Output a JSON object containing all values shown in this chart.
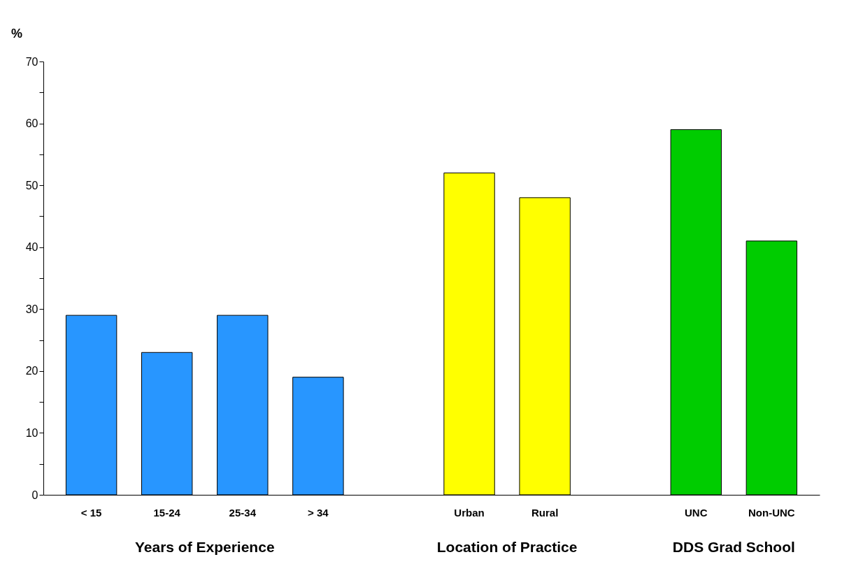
{
  "chart_data": {
    "type": "bar",
    "ylabel": "%",
    "categories": [
      "< 15",
      "15-24",
      "25-34",
      "> 34",
      null,
      "Urban",
      "Rural",
      null,
      "UNC",
      "Non-UNC"
    ],
    "values": [
      29,
      23,
      29,
      19,
      null,
      52,
      48,
      null,
      59,
      41
    ],
    "colors": [
      "#2896ff",
      "#2896ff",
      "#2896ff",
      "#2896ff",
      null,
      "#ffff00",
      "#ffff00",
      null,
      "#00cc00",
      "#00cc00"
    ],
    "ylim": [
      0,
      70
    ],
    "yticks": [
      0,
      {
        "value": 5,
        "label": null
      },
      10,
      {
        "value": 15,
        "label": null
      },
      20,
      {
        "value": 25,
        "label": null
      },
      30,
      {
        "value": 35,
        "label": null
      },
      40,
      {
        "value": 45,
        "label": null
      },
      50,
      {
        "value": 55,
        "label": null
      },
      60,
      {
        "value": 65,
        "label": null
      },
      70
    ],
    "annotations": [
      "Years of Experience",
      "Location of Practice",
      "DDS Grad School"
    ],
    "grid": false
  }
}
